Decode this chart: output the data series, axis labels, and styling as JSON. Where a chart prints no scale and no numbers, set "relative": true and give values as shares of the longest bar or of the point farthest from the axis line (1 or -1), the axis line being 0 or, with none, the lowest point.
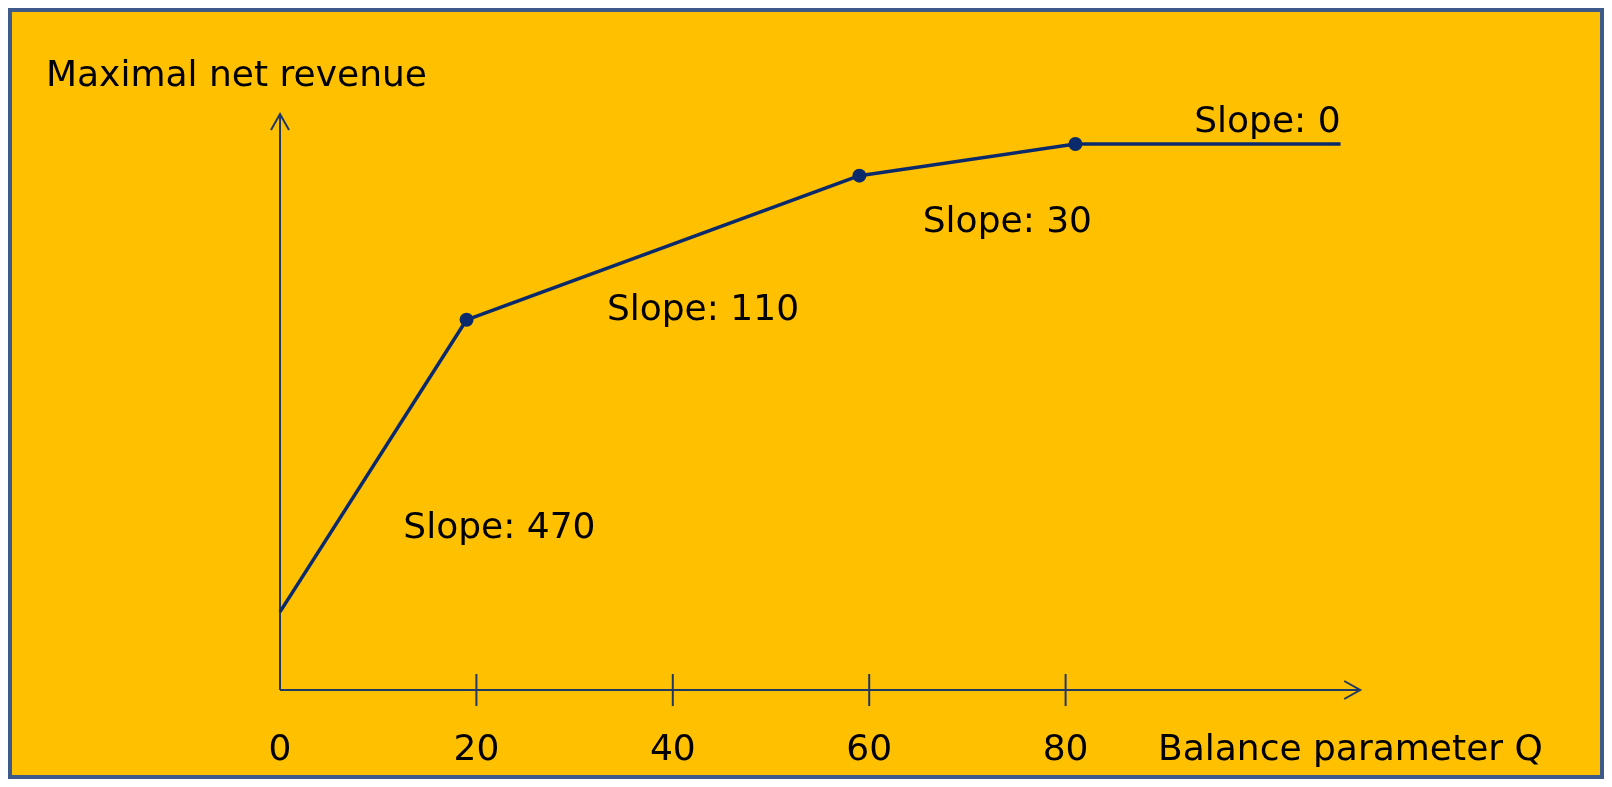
{
  "chart_data": {
    "type": "line",
    "relative": true,
    "xlabel": "Balance parameter Q",
    "ylabel": "Maximal net revenue",
    "xlim": [
      0,
      110
    ],
    "xticks": [
      0,
      20,
      40,
      60,
      80
    ],
    "series": [
      {
        "type": "line",
        "color": "#0b2a6b",
        "marker": "none",
        "x": [
          0,
          19,
          59,
          81,
          108
        ],
        "values": [
          0.143,
          0.678,
          0.942,
          1,
          1
        ]
      },
      {
        "type": "scatter",
        "color": "#0b2a6b",
        "marker": "circle",
        "x": [
          19,
          59,
          81
        ],
        "values": [
          0.678,
          0.942,
          1
        ]
      }
    ],
    "annotations": [
      "Slope: 470",
      "Slope: 110",
      "Slope: 30",
      "Slope: 0"
    ]
  }
}
